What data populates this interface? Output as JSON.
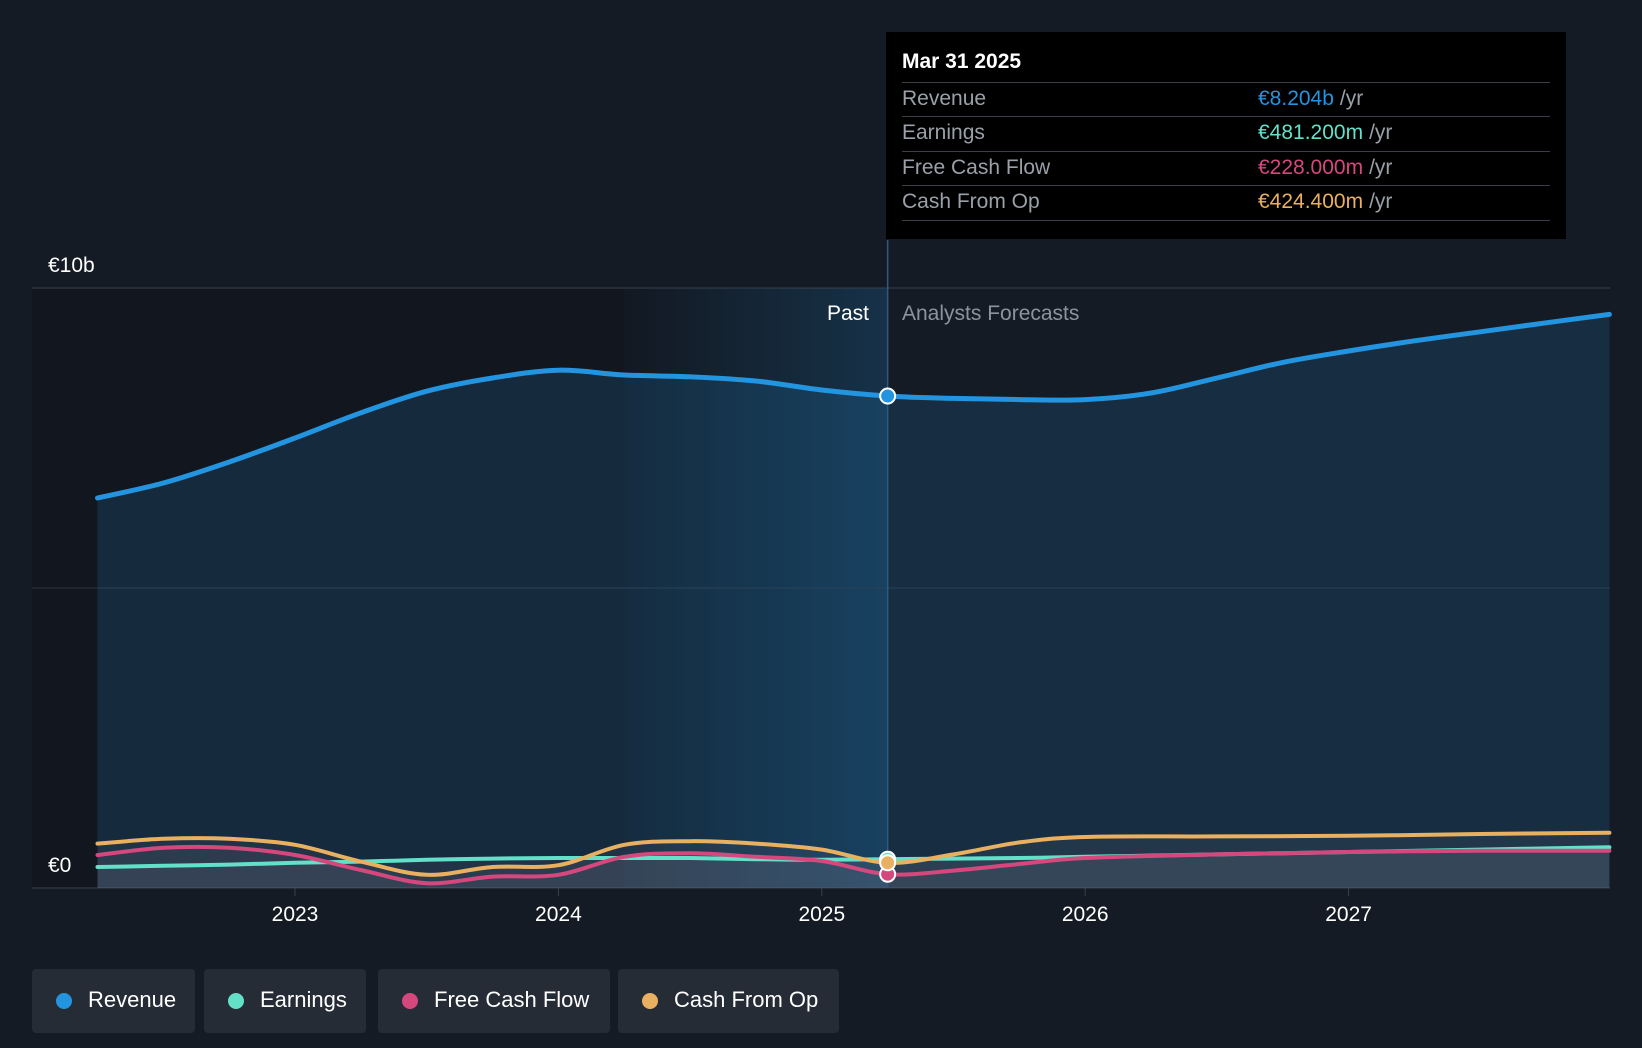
{
  "chart_data": {
    "type": "line",
    "y_axis": {
      "top_label": "€10b",
      "bottom_label": "€0",
      "ylim": [
        0,
        10
      ],
      "unit": "€b"
    },
    "x_axis": {
      "ticks": [
        "2023",
        "2024",
        "2025",
        "2026",
        "2027"
      ],
      "xlim": [
        2022.25,
        2027.99
      ]
    },
    "divider_x": 2025.25,
    "past_label": "Past",
    "forecast_label": "Analysts Forecasts",
    "series": [
      {
        "name": "Revenue",
        "key": "revenue",
        "color": "#2394df",
        "points": [
          [
            2022.25,
            6.5
          ],
          [
            2022.5,
            6.75
          ],
          [
            2022.75,
            7.1
          ],
          [
            2023.0,
            7.5
          ],
          [
            2023.25,
            7.92
          ],
          [
            2023.5,
            8.28
          ],
          [
            2023.75,
            8.5
          ],
          [
            2024.0,
            8.63
          ],
          [
            2024.25,
            8.55
          ],
          [
            2024.5,
            8.52
          ],
          [
            2024.75,
            8.45
          ],
          [
            2025.0,
            8.3
          ],
          [
            2025.25,
            8.2
          ],
          [
            2025.5,
            8.16
          ],
          [
            2025.75,
            8.14
          ],
          [
            2026.0,
            8.14
          ],
          [
            2026.25,
            8.25
          ],
          [
            2026.5,
            8.5
          ],
          [
            2026.75,
            8.76
          ],
          [
            2027.0,
            8.95
          ],
          [
            2027.25,
            9.12
          ],
          [
            2027.5,
            9.27
          ],
          [
            2027.75,
            9.42
          ],
          [
            2027.99,
            9.56
          ]
        ]
      },
      {
        "name": "Earnings",
        "key": "earnings",
        "color": "#62e0c8",
        "points": [
          [
            2022.25,
            0.35
          ],
          [
            2022.5,
            0.37
          ],
          [
            2022.75,
            0.39
          ],
          [
            2023.0,
            0.42
          ],
          [
            2023.25,
            0.44
          ],
          [
            2023.5,
            0.47
          ],
          [
            2023.75,
            0.49
          ],
          [
            2024.0,
            0.5
          ],
          [
            2024.25,
            0.5
          ],
          [
            2024.5,
            0.5
          ],
          [
            2024.75,
            0.48
          ],
          [
            2025.0,
            0.47
          ],
          [
            2025.25,
            0.48
          ],
          [
            2025.5,
            0.49
          ],
          [
            2025.75,
            0.5
          ],
          [
            2026.0,
            0.52
          ],
          [
            2026.5,
            0.56
          ],
          [
            2027.0,
            0.6
          ],
          [
            2027.5,
            0.64
          ],
          [
            2027.99,
            0.68
          ]
        ]
      },
      {
        "name": "Free Cash Flow",
        "key": "fcf",
        "color": "#d4487e",
        "points": [
          [
            2022.25,
            0.55
          ],
          [
            2022.5,
            0.67
          ],
          [
            2022.75,
            0.67
          ],
          [
            2023.0,
            0.55
          ],
          [
            2023.25,
            0.3
          ],
          [
            2023.5,
            0.08
          ],
          [
            2023.75,
            0.19
          ],
          [
            2024.0,
            0.22
          ],
          [
            2024.25,
            0.52
          ],
          [
            2024.5,
            0.58
          ],
          [
            2024.75,
            0.52
          ],
          [
            2025.0,
            0.45
          ],
          [
            2025.25,
            0.23
          ],
          [
            2025.5,
            0.29
          ],
          [
            2025.75,
            0.4
          ],
          [
            2026.0,
            0.5
          ],
          [
            2026.5,
            0.56
          ],
          [
            2027.0,
            0.6
          ],
          [
            2027.5,
            0.62
          ],
          [
            2027.99,
            0.62
          ]
        ]
      },
      {
        "name": "Cash From Op",
        "key": "cfo",
        "color": "#e8b060",
        "points": [
          [
            2022.25,
            0.74
          ],
          [
            2022.5,
            0.82
          ],
          [
            2022.75,
            0.82
          ],
          [
            2023.0,
            0.72
          ],
          [
            2023.25,
            0.44
          ],
          [
            2023.5,
            0.22
          ],
          [
            2023.75,
            0.35
          ],
          [
            2024.0,
            0.38
          ],
          [
            2024.25,
            0.72
          ],
          [
            2024.5,
            0.78
          ],
          [
            2024.75,
            0.74
          ],
          [
            2025.0,
            0.64
          ],
          [
            2025.25,
            0.42
          ],
          [
            2025.5,
            0.56
          ],
          [
            2025.75,
            0.76
          ],
          [
            2026.0,
            0.85
          ],
          [
            2026.5,
            0.86
          ],
          [
            2027.0,
            0.87
          ],
          [
            2027.5,
            0.9
          ],
          [
            2027.99,
            0.92
          ]
        ]
      }
    ]
  },
  "tooltip": {
    "date": "Mar 31 2025",
    "unit": "/yr",
    "rows": [
      {
        "label": "Revenue",
        "value": "€8.204b",
        "color": "#2394df"
      },
      {
        "label": "Earnings",
        "value": "€481.200m",
        "color": "#62e0c8"
      },
      {
        "label": "Free Cash Flow",
        "value": "€228.000m",
        "color": "#d4487e"
      },
      {
        "label": "Cash From Op",
        "value": "€424.400m",
        "color": "#e8b060"
      }
    ]
  },
  "legend": [
    {
      "label": "Revenue",
      "color": "#2394df"
    },
    {
      "label": "Earnings",
      "color": "#62e0c8"
    },
    {
      "label": "Free Cash Flow",
      "color": "#d4487e"
    },
    {
      "label": "Cash From Op",
      "color": "#e8b060"
    }
  ]
}
